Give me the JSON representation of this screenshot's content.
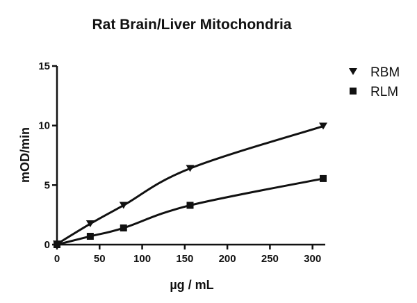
{
  "chart_data": {
    "type": "line",
    "title": "Rat Brain/Liver Mitochondria",
    "xlabel": "µg / mL",
    "ylabel": "mOD/min",
    "xlim": [
      0,
      312.5
    ],
    "ylim": [
      0,
      15
    ],
    "xticks": [
      0,
      50,
      100,
      150,
      200,
      250,
      300
    ],
    "yticks": [
      0,
      5,
      10,
      15
    ],
    "grid": false,
    "legend_position": "top-right",
    "series": [
      {
        "name": "RBM",
        "marker": "triangle-down",
        "x": [
          0,
          39.06,
          78.13,
          156.25,
          312.5
        ],
        "y": [
          0.05,
          1.75,
          3.3,
          6.4,
          9.95
        ]
      },
      {
        "name": "RLM",
        "marker": "square",
        "x": [
          0,
          39.06,
          78.13,
          156.25,
          312.5
        ],
        "y": [
          0.0,
          0.7,
          1.4,
          3.3,
          5.55
        ]
      }
    ]
  }
}
